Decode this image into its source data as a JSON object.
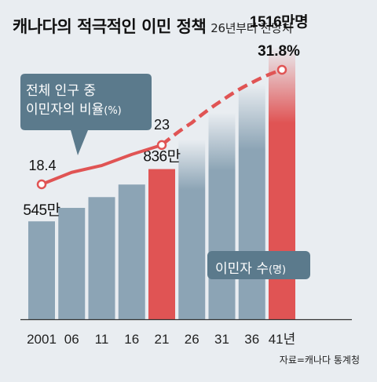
{
  "title": "캐나다의 적극적인 이민 정책",
  "subtitle": "26년부터 전망치",
  "source": "자료=캐나다 통계청",
  "callout": {
    "line1": "전체 인구 중",
    "line2": "이민자의 비율",
    "unit": "(%)"
  },
  "legend": {
    "label": "이민자 수",
    "unit": "(명)"
  },
  "colors": {
    "actual_bar": "#8ca4b5",
    "highlight": "#e05454",
    "callout_bg": "#5b7a8c",
    "background": "#e9edf1"
  },
  "chart_data": {
    "type": "bar",
    "categories": [
      "2001",
      "06",
      "11",
      "16",
      "21",
      "26",
      "31",
      "36",
      "41년"
    ],
    "bar_series": {
      "name": "이민자 수",
      "values": [
        545,
        620,
        680,
        750,
        836,
        1000,
        1150,
        1310,
        1516
      ],
      "highlighted_indices": [
        4,
        8
      ],
      "projected_from_index": 5,
      "data_labels": {
        "0": "545만",
        "4": "836만",
        "8": "1516만명"
      }
    },
    "line_series": {
      "name": "전체 인구 중 이민자의 비율",
      "values": [
        18.4,
        19.8,
        20.6,
        21.9,
        23,
        25.6,
        28.2,
        30.3,
        31.8
      ],
      "projected_from_index": 4,
      "marked_indices": [
        0,
        4,
        8
      ],
      "data_labels": {
        "0": "18.4",
        "4": "23",
        "8": "31.8%"
      }
    },
    "projection_start": "26"
  }
}
